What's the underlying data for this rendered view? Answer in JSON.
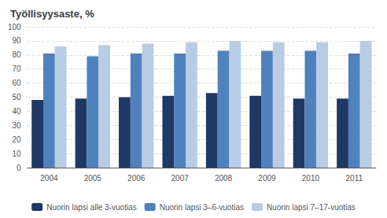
{
  "chart_data": {
    "type": "bar",
    "title": "Työllisyysaste, %",
    "categories": [
      "2004",
      "2005",
      "2006",
      "2007",
      "2008",
      "2009",
      "2010",
      "2011"
    ],
    "series": [
      {
        "name": "Nuorin lapsi alle 3-vuotias",
        "color": "#1F3864",
        "values": [
          48,
          49,
          50,
          51,
          53,
          51,
          49,
          49
        ]
      },
      {
        "name": "Nuorin lapsi 3–6-vuotias",
        "color": "#4F81BD",
        "values": [
          81,
          79,
          81,
          81,
          83,
          83,
          83,
          81
        ]
      },
      {
        "name": "Nuorin lapsi 7–17-vuotias",
        "color": "#B8CCE4",
        "values": [
          86,
          87,
          88,
          89,
          90,
          89,
          89,
          90
        ]
      }
    ],
    "ylim": [
      0,
      100
    ],
    "yticks": [
      0,
      10,
      20,
      30,
      40,
      50,
      60,
      70,
      80,
      90,
      100
    ],
    "grid": true,
    "legend": "bottom"
  }
}
